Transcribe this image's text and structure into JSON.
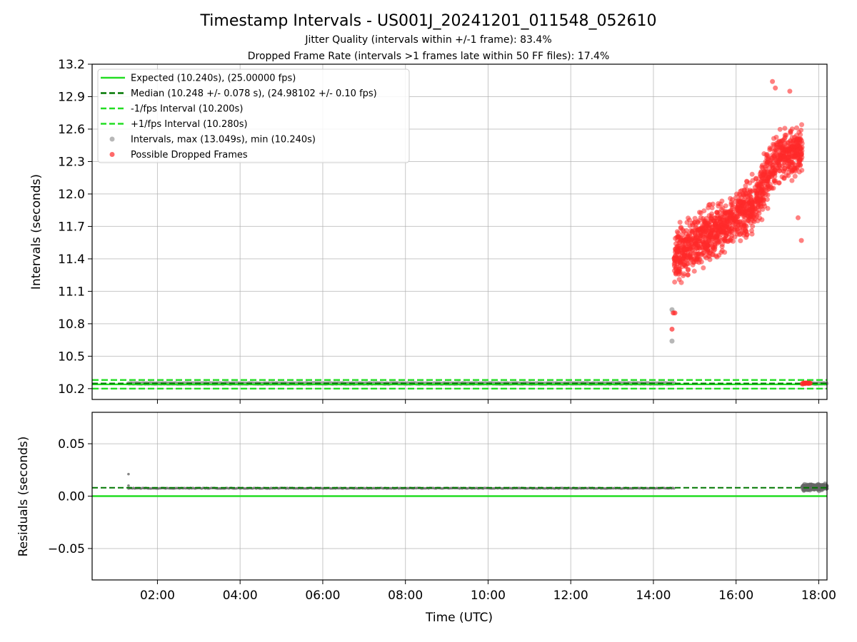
{
  "title": "Timestamp Intervals - US001J_20241201_011548_052610",
  "subtitle_1": "Jitter Quality (intervals within +/-1 frame): 83.4%",
  "subtitle_2": "Dropped Frame Rate (intervals >1 frames late within 50 FF files): 17.4%",
  "colors": {
    "expected": "#22dd22",
    "median": "#007700",
    "interval": "#999999",
    "dropped": "#ff2a2a",
    "grid": "#b0b0b0",
    "residual": "#666666"
  },
  "chart_data": [
    {
      "type": "scatter",
      "name": "intervals",
      "ylabel": "Intervals (seconds)",
      "xlabel": "",
      "xlim_hours": [
        0.42,
        18.2
      ],
      "ylim": [
        10.1,
        13.2
      ],
      "yticks": [
        10.2,
        10.5,
        10.8,
        11.1,
        11.4,
        11.7,
        12.0,
        12.3,
        12.6,
        12.9,
        13.2
      ],
      "ytick_labels": [
        "10.2",
        "10.5",
        "10.8",
        "11.1",
        "11.4",
        "11.7",
        "12.0",
        "12.3",
        "12.6",
        "12.9",
        "13.2"
      ],
      "grid": true,
      "legend_position": "top-left",
      "legend": [
        {
          "label": "Expected (10.240s), (25.00000 fps)",
          "style": "solid",
          "color": "#22dd22"
        },
        {
          "label": "Median (10.248 +/- 0.078 s), (24.98102 +/- 0.10 fps)",
          "style": "dashed",
          "color": "#007700"
        },
        {
          "label": "-1/fps Interval (10.200s)",
          "style": "dashed",
          "color": "#22dd22"
        },
        {
          "label": "+1/fps Interval (10.280s)",
          "style": "dashed",
          "color": "#22dd22"
        },
        {
          "label": "Intervals, max (13.049s), min (10.240s)",
          "style": "marker",
          "color": "#999999"
        },
        {
          "label": "Possible Dropped Frames",
          "style": "marker",
          "color": "#ff2a2a"
        }
      ],
      "lines": {
        "expected": 10.24,
        "median": 10.248,
        "minus_fps": 10.2,
        "plus_fps": 10.28
      },
      "normal_interval_band": {
        "x_start": 1.3,
        "x_end": 14.5,
        "y": 10.248
      },
      "normal_interval_band_2": {
        "x_start": 17.75,
        "x_end": 18.2,
        "y": 10.248
      },
      "dropped_cluster_late": {
        "x_start": 17.6,
        "x_end": 17.8,
        "y": 10.248
      },
      "outliers": [
        [
          14.45,
          10.64
        ],
        [
          14.45,
          10.93
        ],
        [
          14.45,
          10.75
        ],
        [
          14.48,
          10.9
        ],
        [
          14.52,
          10.9
        ]
      ],
      "dropped_trend": [
        {
          "x": 14.5,
          "y_center": 11.4,
          "spread": 0.32
        },
        {
          "x": 15.0,
          "y_center": 11.55,
          "spread": 0.35
        },
        {
          "x": 15.5,
          "y_center": 11.65,
          "spread": 0.35
        },
        {
          "x": 16.0,
          "y_center": 11.78,
          "spread": 0.35
        },
        {
          "x": 16.5,
          "y_center": 11.95,
          "spread": 0.33
        },
        {
          "x": 17.0,
          "y_center": 12.35,
          "spread": 0.3
        },
        {
          "x": 17.6,
          "y_center": 12.4,
          "spread": 0.3
        }
      ],
      "dropped_extremes": [
        [
          16.88,
          13.04
        ],
        [
          17.3,
          12.95
        ],
        [
          17.58,
          11.57
        ],
        [
          17.5,
          11.78
        ],
        [
          16.95,
          12.98
        ]
      ]
    },
    {
      "type": "scatter",
      "name": "residuals",
      "ylabel": "Residuals (seconds)",
      "xlabel": "Time (UTC)",
      "xlim_hours": [
        0.42,
        18.2
      ],
      "ylim": [
        -0.08,
        0.08
      ],
      "yticks": [
        -0.05,
        0.0,
        0.05
      ],
      "ytick_labels": [
        "−0.05",
        "0.00",
        "0.05"
      ],
      "xticks_hours": [
        2,
        4,
        6,
        8,
        10,
        12,
        14,
        16,
        18
      ],
      "xtick_labels": [
        "02:00",
        "04:00",
        "06:00",
        "08:00",
        "10:00",
        "12:00",
        "14:00",
        "16:00",
        "18:00"
      ],
      "grid": true,
      "lines": {
        "zero": 0.0,
        "median_residual": 0.008
      },
      "residual_band": {
        "x_start": 1.3,
        "x_end": 14.5,
        "y": 0.0075
      },
      "residual_outliers": [
        [
          1.3,
          0.021
        ],
        [
          1.3,
          0.01
        ]
      ],
      "residual_cluster": {
        "x_start": 17.6,
        "x_end": 18.2,
        "y_center": 0.0085,
        "spread": 0.004
      }
    }
  ]
}
